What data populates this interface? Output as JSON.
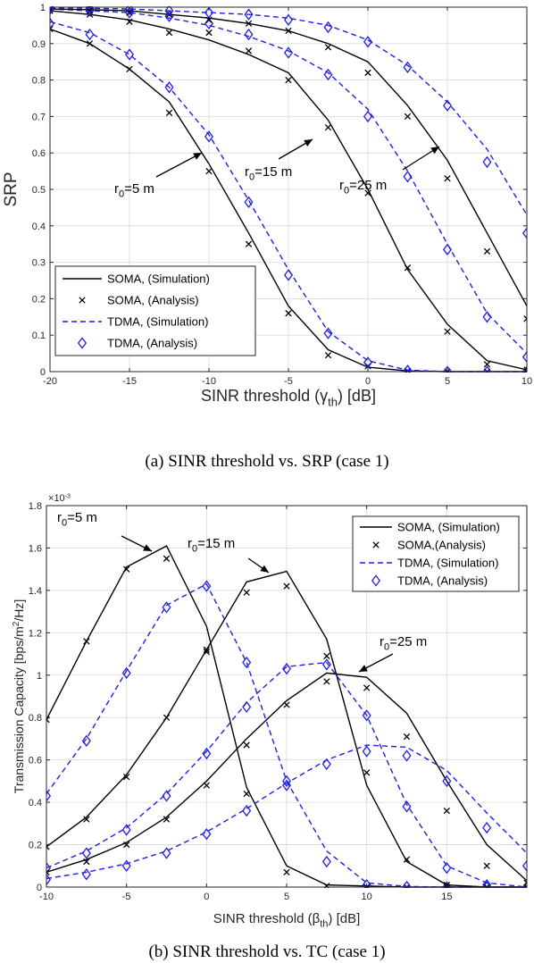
{
  "colors": {
    "soma": "#000000",
    "tdma": "#1f1fe6",
    "axis": "#262626",
    "grid": "#d9d9d9"
  },
  "chart_data": [
    {
      "type": "line",
      "xlabel": "SINR threshold (γth) [dB]",
      "ylabel": "SRP",
      "xlim": [
        -20,
        10
      ],
      "ylim": [
        0,
        1
      ],
      "xticks": [
        -20,
        -15,
        -10,
        -5,
        0,
        5,
        10
      ],
      "yticks": [
        0,
        0.1,
        0.2,
        0.3,
        0.4,
        0.5,
        0.6,
        0.7,
        0.8,
        0.9,
        1
      ],
      "xtick_labels": [
        "-20",
        "-15",
        "-10",
        "-5",
        "0",
        "5",
        "10"
      ],
      "ytick_labels": [
        "0",
        "0.1",
        "0.2",
        "0.3",
        "0.4",
        "0.5",
        "0.6",
        "0.7",
        "0.8",
        "0.9",
        "1"
      ],
      "grid": true,
      "legend_position": "bottom-left",
      "legend": [
        "SOMA, (Simulation)",
        "SOMA, (Analysis)",
        "TDMA, (Simulation)",
        "TDMA, (Analysis)"
      ],
      "caption": "(a) SINR threshold vs. SRP (case 1)",
      "x": [
        -20,
        -17.5,
        -15,
        -12.5,
        -10,
        -7.5,
        -5,
        -2.5,
        0,
        2.5,
        5,
        7.5,
        10
      ],
      "series": [
        {
          "group": "r0=5 m",
          "style": "soma-sim",
          "values": [
            0.94,
            0.9,
            0.83,
            0.74,
            0.57,
            0.38,
            0.18,
            0.06,
            0.012,
            0.002,
            0,
            0,
            0
          ]
        },
        {
          "group": "r0=5 m",
          "style": "soma-ana",
          "values": [
            0.94,
            0.9,
            0.83,
            0.71,
            0.55,
            0.35,
            0.16,
            0.045,
            0.015,
            0.002,
            0,
            0,
            0
          ]
        },
        {
          "group": "r0=5 m",
          "style": "tdma-sim",
          "values": [
            0.96,
            0.93,
            0.87,
            0.78,
            0.65,
            0.47,
            0.28,
            0.11,
            0.03,
            0.004,
            0,
            0,
            0
          ]
        },
        {
          "group": "r0=5 m",
          "style": "tdma-ana",
          "values": [
            0.955,
            0.925,
            0.87,
            0.78,
            0.645,
            0.465,
            0.265,
            0.105,
            0.025,
            0.003,
            0,
            0,
            0
          ]
        },
        {
          "group": "r0=15 m",
          "style": "soma-sim",
          "values": [
            0.99,
            0.98,
            0.965,
            0.94,
            0.91,
            0.87,
            0.82,
            0.69,
            0.5,
            0.28,
            0.13,
            0.03,
            0.005
          ]
        },
        {
          "group": "r0=15 m",
          "style": "soma-ana",
          "values": [
            0.99,
            0.98,
            0.96,
            0.93,
            0.93,
            0.88,
            0.8,
            0.67,
            0.49,
            0.285,
            0.11,
            0.02,
            0.005
          ]
        },
        {
          "group": "r0=15 m",
          "style": "tdma-sim",
          "values": [
            0.995,
            0.99,
            0.985,
            0.97,
            0.95,
            0.92,
            0.88,
            0.82,
            0.72,
            0.55,
            0.35,
            0.16,
            0.05
          ]
        },
        {
          "group": "r0=15 m",
          "style": "tdma-ana",
          "values": [
            0.995,
            0.99,
            0.985,
            0.975,
            0.955,
            0.925,
            0.875,
            0.815,
            0.7,
            0.535,
            0.335,
            0.15,
            0.04
          ]
        },
        {
          "group": "r0=25 m",
          "style": "soma-sim",
          "values": [
            0.995,
            0.993,
            0.99,
            0.98,
            0.97,
            0.955,
            0.935,
            0.9,
            0.85,
            0.73,
            0.58,
            0.38,
            0.18
          ]
        },
        {
          "group": "r0=25 m",
          "style": "soma-ana",
          "values": [
            0.995,
            0.99,
            0.985,
            0.98,
            0.965,
            0.955,
            0.935,
            0.89,
            0.82,
            0.7,
            0.53,
            0.33,
            0.145
          ]
        },
        {
          "group": "r0=25 m",
          "style": "tdma-sim",
          "values": [
            0.998,
            0.997,
            0.995,
            0.99,
            0.985,
            0.98,
            0.97,
            0.95,
            0.91,
            0.84,
            0.74,
            0.61,
            0.43
          ]
        },
        {
          "group": "r0=25 m",
          "style": "tdma-ana",
          "values": [
            0.998,
            0.996,
            0.994,
            0.99,
            0.985,
            0.98,
            0.965,
            0.945,
            0.905,
            0.835,
            0.73,
            0.575,
            0.38
          ]
        }
      ],
      "annotations": [
        "r0=5 m",
        "r0=15 m",
        "r0=25 m"
      ]
    },
    {
      "type": "line",
      "xlabel": "SINR threshold (βth) [dB]",
      "ylabel": "Transmission Capacity [bps/m2/Hz]",
      "y_multiplier": "×10-3",
      "xlim": [
        -10,
        20
      ],
      "ylim": [
        0,
        1.8
      ],
      "xticks": [
        -10,
        -5,
        0,
        5,
        10,
        15
      ],
      "yticks": [
        0,
        0.2,
        0.4,
        0.6,
        0.8,
        1,
        1.2,
        1.4,
        1.6,
        1.8
      ],
      "xtick_labels": [
        "-10",
        "-5",
        "0",
        "5",
        "10",
        "15"
      ],
      "ytick_labels": [
        "0",
        "0.2",
        "0.4",
        "0.6",
        "0.8",
        "1",
        "1.2",
        "1.4",
        "1.6",
        "1.8"
      ],
      "grid": true,
      "legend_position": "top-right",
      "legend": [
        "SOMA, (Simulation)",
        "SOMA,(Analysis)",
        "TDMA, (Simulation)",
        "TDMA, (Analysis)"
      ],
      "caption": "(b) SINR threshold vs. TC (case 1)",
      "x": [
        -10,
        -7.5,
        -5,
        -2.5,
        0,
        2.5,
        5,
        7.5,
        10,
        12.5,
        15,
        17.5,
        20
      ],
      "series": [
        {
          "group": "r0=5 m",
          "style": "soma-sim",
          "values": [
            0.79,
            1.16,
            1.51,
            1.61,
            1.23,
            0.47,
            0.1,
            0.01,
            0.005,
            0,
            0,
            0,
            0
          ]
        },
        {
          "group": "r0=5 m",
          "style": "soma-ana",
          "values": [
            0.79,
            1.16,
            1.5,
            1.55,
            1.11,
            0.44,
            0.07,
            0.005,
            0,
            0,
            0,
            0,
            0
          ]
        },
        {
          "group": "r0=5 m",
          "style": "tdma-sim",
          "values": [
            0.44,
            0.7,
            1.02,
            1.33,
            1.43,
            1.06,
            0.5,
            0.17,
            0.02,
            0.003,
            0,
            0,
            0
          ]
        },
        {
          "group": "r0=5 m",
          "style": "tdma-ana",
          "values": [
            0.43,
            0.69,
            1.01,
            1.32,
            1.42,
            1.06,
            0.5,
            0.12,
            0.01,
            0.002,
            0,
            0,
            0
          ]
        },
        {
          "group": "r0=15 m",
          "style": "soma-sim",
          "values": [
            0.19,
            0.33,
            0.53,
            0.8,
            1.12,
            1.44,
            1.49,
            1.17,
            0.48,
            0.12,
            0.01,
            0,
            0
          ]
        },
        {
          "group": "r0=15 m",
          "style": "soma-ana",
          "values": [
            0.19,
            0.32,
            0.52,
            0.8,
            1.12,
            1.39,
            1.42,
            1.09,
            0.54,
            0.13,
            0.01,
            0,
            0
          ]
        },
        {
          "group": "r0=15 m",
          "style": "tdma-sim",
          "values": [
            0.09,
            0.17,
            0.28,
            0.44,
            0.64,
            0.87,
            1.04,
            1.06,
            0.81,
            0.39,
            0.1,
            0.02,
            0
          ]
        },
        {
          "group": "r0=15 m",
          "style": "tdma-ana",
          "values": [
            0.09,
            0.16,
            0.27,
            0.43,
            0.63,
            0.85,
            1.03,
            1.05,
            0.81,
            0.38,
            0.09,
            0.01,
            0
          ]
        },
        {
          "group": "r0=25 m",
          "style": "soma-sim",
          "values": [
            0.07,
            0.13,
            0.21,
            0.33,
            0.5,
            0.7,
            0.88,
            1.01,
            0.99,
            0.82,
            0.5,
            0.2,
            0.03
          ]
        },
        {
          "group": "r0=25 m",
          "style": "soma-ana",
          "values": [
            0.07,
            0.12,
            0.2,
            0.32,
            0.48,
            0.67,
            0.86,
            0.97,
            0.94,
            0.71,
            0.36,
            0.1,
            0.02
          ]
        },
        {
          "group": "r0=25 m",
          "style": "tdma-sim",
          "values": [
            0.04,
            0.07,
            0.11,
            0.17,
            0.26,
            0.37,
            0.49,
            0.6,
            0.67,
            0.66,
            0.55,
            0.35,
            0.16
          ]
        },
        {
          "group": "r0=25 m",
          "style": "tdma-ana",
          "values": [
            0.035,
            0.06,
            0.1,
            0.16,
            0.25,
            0.36,
            0.48,
            0.58,
            0.64,
            0.62,
            0.5,
            0.28,
            0.1
          ]
        }
      ],
      "annotations": [
        "r0=5 m",
        "r0=15 m",
        "r0=25 m"
      ]
    }
  ]
}
